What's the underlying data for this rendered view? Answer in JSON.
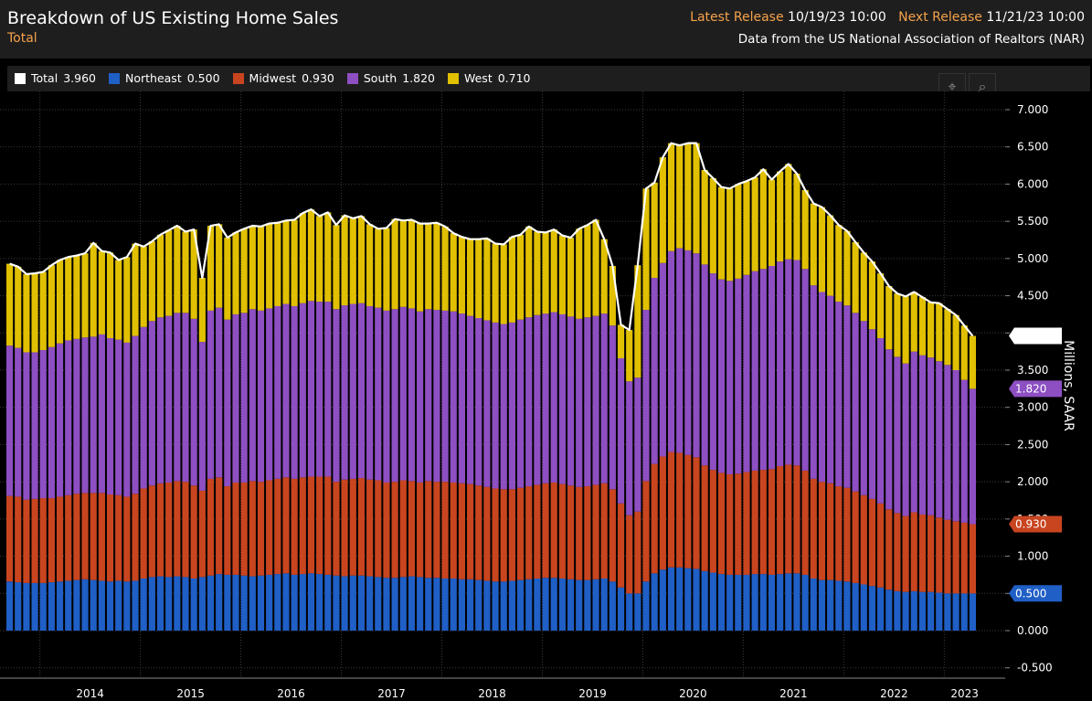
{
  "header": {
    "title": "Breakdown of US Existing Home Sales",
    "subtitle": "Total",
    "latest_release_label": "Latest Release",
    "latest_release_value": "10/19/23 10:00",
    "next_release_label": "Next Release",
    "next_release_value": "11/21/23 10:00",
    "source": "Data from the US National Association of Realtors (NAR)"
  },
  "legend": [
    {
      "name": "Total",
      "value": "3.960",
      "color": "#ffffff"
    },
    {
      "name": "Northeast",
      "value": "0.500",
      "color": "#1f5fc6"
    },
    {
      "name": "Midwest",
      "value": "0.930",
      "color": "#c8451f"
    },
    {
      "name": "South",
      "value": "1.820",
      "color": "#8d4fc2"
    },
    {
      "name": "West",
      "value": "0.710",
      "color": "#e0c000"
    }
  ],
  "toolbar": {
    "crosshair_icon": "crosshair-icon",
    "zoom_icon": "zoom-icon"
  },
  "chart_data": {
    "type": "bar",
    "stacked": true,
    "ylabel": "Millions, SAAR",
    "ylim": [
      -0.6,
      7.2
    ],
    "y_ticks": [
      "7.000",
      "6.500",
      "6.000",
      "5.500",
      "5.000",
      "4.500",
      "4.000",
      "3.500",
      "3.000",
      "2.500",
      "2.000",
      "1.500",
      "1.000",
      "0.500",
      "0.000",
      "-0.500"
    ],
    "x_tick_labels": [
      "2014",
      "2015",
      "2016",
      "2017",
      "2018",
      "2019",
      "2020",
      "2021",
      "2022",
      "2023"
    ],
    "first_month": "2013-09",
    "last_values": {
      "Total": "3.960",
      "South": "1.820",
      "Midwest": "0.930",
      "Northeast": "0.500"
    },
    "series": [
      {
        "name": "Northeast",
        "color": "#1f5fc6",
        "values": [
          0.66,
          0.65,
          0.64,
          0.64,
          0.64,
          0.65,
          0.66,
          0.67,
          0.68,
          0.69,
          0.68,
          0.67,
          0.66,
          0.67,
          0.66,
          0.67,
          0.7,
          0.72,
          0.73,
          0.72,
          0.73,
          0.72,
          0.7,
          0.72,
          0.74,
          0.76,
          0.75,
          0.75,
          0.74,
          0.73,
          0.74,
          0.75,
          0.76,
          0.77,
          0.75,
          0.76,
          0.77,
          0.76,
          0.75,
          0.74,
          0.73,
          0.74,
          0.74,
          0.73,
          0.72,
          0.71,
          0.71,
          0.72,
          0.73,
          0.72,
          0.71,
          0.71,
          0.7,
          0.7,
          0.69,
          0.69,
          0.68,
          0.67,
          0.66,
          0.66,
          0.67,
          0.68,
          0.69,
          0.7,
          0.71,
          0.71,
          0.7,
          0.69,
          0.68,
          0.68,
          0.69,
          0.7,
          0.66,
          0.58,
          0.5,
          0.5,
          0.66,
          0.77,
          0.82,
          0.85,
          0.85,
          0.84,
          0.83,
          0.8,
          0.78,
          0.76,
          0.75,
          0.75,
          0.75,
          0.76,
          0.76,
          0.75,
          0.76,
          0.77,
          0.77,
          0.75,
          0.7,
          0.68,
          0.68,
          0.67,
          0.66,
          0.64,
          0.62,
          0.6,
          0.58,
          0.55,
          0.53,
          0.52,
          0.53,
          0.52,
          0.52,
          0.51,
          0.5,
          0.5,
          0.5,
          0.5
        ]
      },
      {
        "name": "Midwest",
        "color": "#c8451f",
        "values": [
          1.15,
          1.15,
          1.12,
          1.13,
          1.14,
          1.13,
          1.14,
          1.15,
          1.16,
          1.16,
          1.17,
          1.18,
          1.17,
          1.15,
          1.14,
          1.17,
          1.21,
          1.23,
          1.25,
          1.27,
          1.28,
          1.28,
          1.25,
          1.16,
          1.3,
          1.3,
          1.19,
          1.24,
          1.25,
          1.28,
          1.26,
          1.27,
          1.28,
          1.29,
          1.29,
          1.3,
          1.3,
          1.31,
          1.32,
          1.26,
          1.3,
          1.3,
          1.31,
          1.3,
          1.3,
          1.28,
          1.29,
          1.3,
          1.28,
          1.27,
          1.3,
          1.29,
          1.3,
          1.29,
          1.29,
          1.28,
          1.27,
          1.26,
          1.25,
          1.24,
          1.23,
          1.24,
          1.25,
          1.26,
          1.27,
          1.28,
          1.27,
          1.26,
          1.25,
          1.26,
          1.27,
          1.28,
          1.24,
          1.13,
          1.05,
          1.1,
          1.35,
          1.47,
          1.52,
          1.55,
          1.54,
          1.52,
          1.5,
          1.42,
          1.38,
          1.36,
          1.35,
          1.36,
          1.38,
          1.39,
          1.4,
          1.42,
          1.45,
          1.46,
          1.45,
          1.4,
          1.34,
          1.32,
          1.3,
          1.27,
          1.26,
          1.23,
          1.2,
          1.17,
          1.13,
          1.08,
          1.05,
          1.02,
          1.06,
          1.04,
          1.03,
          1.01,
          0.99,
          0.97,
          0.95,
          0.93
        ]
      },
      {
        "name": "South",
        "color": "#8d4fc2",
        "values": [
          2.02,
          2.0,
          1.98,
          1.97,
          1.99,
          2.03,
          2.06,
          2.08,
          2.08,
          2.09,
          2.1,
          2.13,
          2.1,
          2.09,
          2.07,
          2.12,
          2.17,
          2.21,
          2.23,
          2.24,
          2.26,
          2.27,
          2.24,
          2.0,
          2.26,
          2.28,
          2.24,
          2.26,
          2.28,
          2.31,
          2.3,
          2.31,
          2.32,
          2.33,
          2.32,
          2.34,
          2.36,
          2.35,
          2.35,
          2.32,
          2.34,
          2.35,
          2.35,
          2.33,
          2.32,
          2.31,
          2.32,
          2.33,
          2.32,
          2.3,
          2.31,
          2.31,
          2.3,
          2.3,
          2.28,
          2.26,
          2.25,
          2.24,
          2.23,
          2.22,
          2.24,
          2.26,
          2.27,
          2.28,
          2.28,
          2.29,
          2.28,
          2.27,
          2.26,
          2.27,
          2.27,
          2.28,
          2.2,
          1.95,
          1.8,
          1.8,
          2.3,
          2.5,
          2.6,
          2.7,
          2.75,
          2.75,
          2.74,
          2.7,
          2.64,
          2.6,
          2.6,
          2.62,
          2.65,
          2.68,
          2.7,
          2.73,
          2.75,
          2.76,
          2.76,
          2.71,
          2.6,
          2.55,
          2.52,
          2.48,
          2.45,
          2.4,
          2.34,
          2.28,
          2.22,
          2.15,
          2.1,
          2.05,
          2.16,
          2.14,
          2.12,
          2.1,
          2.08,
          2.03,
          1.92,
          1.82
        ]
      },
      {
        "name": "West",
        "color": "#e0c000",
        "values": [
          1.1,
          1.09,
          1.05,
          1.06,
          1.05,
          1.1,
          1.12,
          1.12,
          1.12,
          1.13,
          1.26,
          1.12,
          1.15,
          1.07,
          1.15,
          1.24,
          1.08,
          1.07,
          1.11,
          1.15,
          1.17,
          1.09,
          1.2,
          0.86,
          1.14,
          1.12,
          1.1,
          1.1,
          1.13,
          1.12,
          1.13,
          1.14,
          1.12,
          1.12,
          1.16,
          1.21,
          1.23,
          1.15,
          1.2,
          1.13,
          1.21,
          1.15,
          1.17,
          1.1,
          1.06,
          1.11,
          1.21,
          1.16,
          1.19,
          1.18,
          1.15,
          1.17,
          1.13,
          1.05,
          1.03,
          1.03,
          1.06,
          1.1,
          1.06,
          1.07,
          1.15,
          1.14,
          1.22,
          1.12,
          1.09,
          1.11,
          1.06,
          1.06,
          1.21,
          1.24,
          1.29,
          1.0,
          0.8,
          0.45,
          0.69,
          1.51,
          1.63,
          1.28,
          1.42,
          1.45,
          1.38,
          1.44,
          1.48,
          1.27,
          1.28,
          1.24,
          1.24,
          1.27,
          1.26,
          1.26,
          1.34,
          1.16,
          1.21,
          1.28,
          1.16,
          1.06,
          1.1,
          1.14,
          1.08,
          1.03,
          1.0,
          0.95,
          0.92,
          0.91,
          0.87,
          0.85,
          0.85,
          0.9,
          0.8,
          0.78,
          0.74,
          0.78,
          0.75,
          0.74,
          0.73,
          0.71
        ]
      }
    ]
  }
}
